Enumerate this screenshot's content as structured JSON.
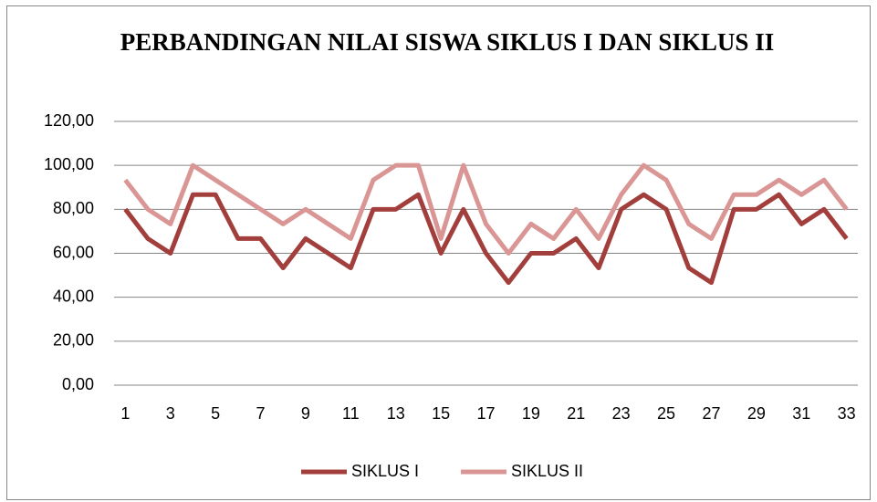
{
  "chart_data": {
    "type": "line",
    "title": "PERBANDINGAN NILAI SISWA SIKLUS I DAN SIKLUS II",
    "categories": [
      "1",
      null,
      "3",
      null,
      "5",
      null,
      "7",
      null,
      "9",
      null,
      "11",
      null,
      "13",
      null,
      "15",
      null,
      "17",
      null,
      "19",
      null,
      "21",
      null,
      "23",
      null,
      "25",
      null,
      "27",
      null,
      "29",
      null,
      "31",
      null,
      "33"
    ],
    "series": [
      {
        "name": "SIKLUS I",
        "color": "#a23f3c",
        "values": [
          80,
          66.67,
          60,
          86.67,
          86.67,
          66.67,
          66.67,
          53.33,
          66.67,
          60,
          53.33,
          80,
          80,
          86.67,
          60,
          80,
          60,
          46.67,
          60,
          60,
          66.67,
          53.33,
          80,
          86.67,
          80,
          53.33,
          46.67,
          80,
          80,
          86.67,
          73.33,
          80,
          66.67
        ]
      },
      {
        "name": "SIKLUS II",
        "color": "#d99694",
        "values": [
          93.33,
          80,
          73.33,
          100,
          93.33,
          86.67,
          80,
          73.33,
          80,
          73.33,
          66.67,
          93.33,
          100,
          100,
          66.67,
          100,
          73.33,
          60,
          73.33,
          66.67,
          80,
          66.67,
          86.67,
          100,
          93.33,
          73.33,
          66.67,
          86.67,
          86.67,
          93.33,
          86.67,
          93.33,
          80
        ]
      }
    ],
    "ylim": [
      0,
      120
    ],
    "yticks": [
      {
        "value": 0,
        "label": "0,00"
      },
      {
        "value": 20,
        "label": "20,00"
      },
      {
        "value": 40,
        "label": "40,00"
      },
      {
        "value": 60,
        "label": "60,00"
      },
      {
        "value": 80,
        "label": "80,00"
      },
      {
        "value": 100,
        "label": "100,00"
      },
      {
        "value": 120,
        "label": "120,00"
      }
    ],
    "grid": true,
    "legend": "bottom"
  }
}
